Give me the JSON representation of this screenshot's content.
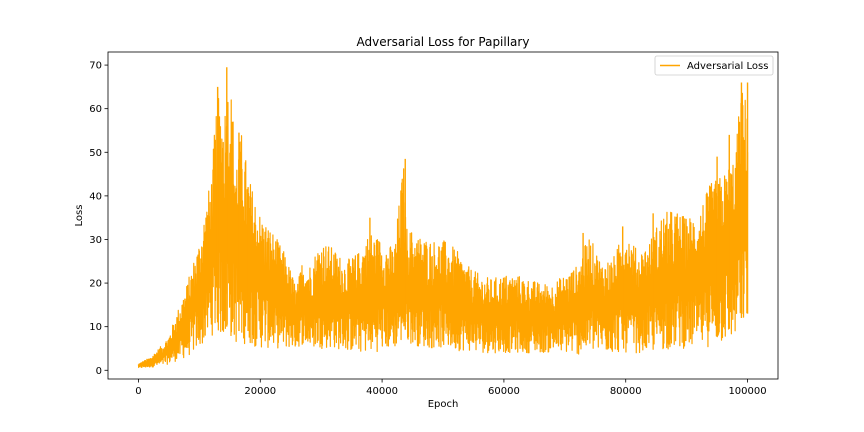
{
  "chart_data": {
    "type": "line",
    "title": "Adversarial Loss for Papillary",
    "xlabel": "Epoch",
    "ylabel": "Loss",
    "xlim": [
      -5000,
      105000
    ],
    "ylim": [
      -2,
      73
    ],
    "xticks": [
      0,
      20000,
      40000,
      60000,
      80000,
      100000
    ],
    "yticks": [
      0,
      10,
      20,
      30,
      40,
      50,
      60,
      70
    ],
    "grid": false,
    "legend_placement": "upper right",
    "series": [
      {
        "name": "Adversarial Loss",
        "color": "#FFA500",
        "envelope_x": [
          0,
          2000,
          4000,
          5000,
          6000,
          8000,
          10000,
          12000,
          13000,
          14000,
          15000,
          16000,
          17000,
          18000,
          20000,
          22000,
          24000,
          26000,
          27000,
          28000,
          30000,
          32000,
          34000,
          36000,
          38000,
          40000,
          42000,
          43500,
          44000,
          46000,
          48000,
          50000,
          52000,
          54000,
          56000,
          58000,
          60000,
          62000,
          64000,
          66000,
          68000,
          70000,
          72000,
          74000,
          76000,
          78000,
          80000,
          82000,
          84000,
          86000,
          88000,
          90000,
          92000,
          94000,
          96000,
          98000,
          99000,
          99500,
          100000
        ],
        "envelope_upper": [
          1.5,
          3,
          6,
          8,
          12,
          20,
          30,
          45,
          65,
          60,
          69,
          50,
          55,
          45,
          36,
          32,
          27,
          19,
          26,
          24,
          30,
          28,
          25,
          27,
          32,
          30,
          28,
          48,
          33,
          31,
          30,
          30,
          28,
          24,
          22,
          21,
          22,
          22,
          21,
          20,
          20,
          22,
          24,
          31,
          25,
          26,
          33,
          27,
          30,
          36,
          37,
          35,
          37,
          43,
          45,
          50,
          66,
          62,
          66
        ],
        "envelope_lower": [
          0.5,
          0.7,
          1.0,
          1.5,
          2.0,
          3.0,
          5.0,
          8.0,
          8.0,
          7.0,
          7.0,
          6.0,
          6.0,
          6.0,
          5.0,
          5.0,
          5.0,
          5.0,
          6.0,
          5.0,
          5.0,
          5.0,
          4.5,
          4.0,
          4.0,
          4.5,
          5.0,
          6.0,
          6.5,
          5.5,
          5.0,
          5.0,
          4.5,
          4.5,
          4.0,
          4.0,
          4.0,
          4.0,
          4.0,
          4.0,
          4.0,
          4.0,
          3.5,
          4.0,
          4.0,
          4.0,
          4.0,
          4.0,
          4.0,
          4.5,
          5.0,
          5.0,
          5.0,
          5.5,
          6.0,
          7.0,
          9.0,
          10.0,
          10.0
        ],
        "spikes": [
          [
            13000,
            65
          ],
          [
            14500,
            69.5
          ],
          [
            16500,
            54.5
          ],
          [
            18000,
            42
          ],
          [
            38000,
            35
          ],
          [
            43800,
            48.5
          ],
          [
            73000,
            31.5
          ],
          [
            79500,
            33
          ],
          [
            84500,
            36
          ],
          [
            95000,
            49
          ],
          [
            97000,
            54
          ],
          [
            99000,
            66
          ],
          [
            100000,
            66
          ]
        ]
      }
    ]
  }
}
